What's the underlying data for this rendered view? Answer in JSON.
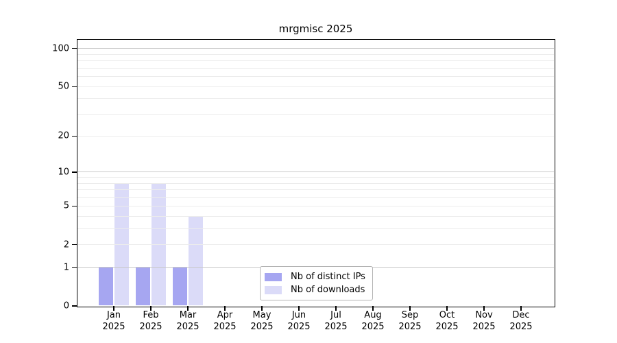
{
  "chart_data": {
    "type": "bar",
    "title": "mrgmisc 2025",
    "categories": [
      "Jan",
      "Feb",
      "Mar",
      "Apr",
      "May",
      "Jun",
      "Jul",
      "Aug",
      "Sep",
      "Oct",
      "Nov",
      "Dec"
    ],
    "year_label": "2025",
    "series": [
      {
        "name": "Nb of distinct IPs",
        "color": "#a6a6f1",
        "values": [
          1,
          1,
          1,
          0,
          0,
          0,
          0,
          0,
          0,
          0,
          0,
          0
        ]
      },
      {
        "name": "Nb of downloads",
        "color": "#dbdbf8",
        "values": [
          8,
          8,
          4,
          0,
          0,
          0,
          0,
          0,
          0,
          0,
          0,
          0
        ]
      }
    ],
    "xlabel": "",
    "ylabel": "",
    "y_scale": "log10(1+y)",
    "y_ticks": [
      0,
      1,
      2,
      5,
      10,
      20,
      50,
      100
    ],
    "y_major_gridlines": [
      1,
      10,
      100
    ],
    "y_minor_gridlines": [
      2,
      3,
      4,
      5,
      6,
      7,
      8,
      9,
      20,
      30,
      40,
      50,
      60,
      70,
      80,
      90
    ],
    "ylim": [
      0,
      117
    ],
    "grid": true,
    "legend_position": "bottom-center"
  },
  "colors": {
    "axis": "#000000",
    "major_grid": "#c8c8c8",
    "minor_grid": "#ececec",
    "background": "#ffffff",
    "text": "#000000"
  }
}
